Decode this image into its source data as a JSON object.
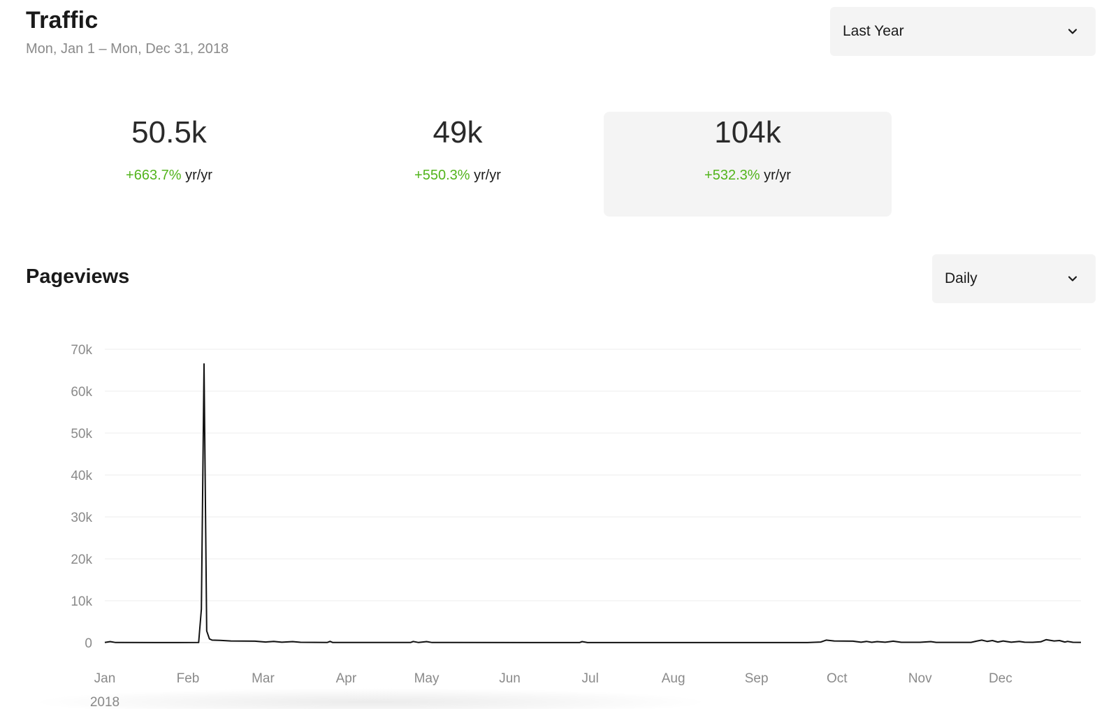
{
  "header": {
    "title": "Traffic",
    "date_range": "Mon, Jan 1 – Mon, Dec 31, 2018"
  },
  "range_select": {
    "value": "Last Year",
    "icon": "chevron-down-icon"
  },
  "stats": [
    {
      "value": "50.5k",
      "change": "+663.7%",
      "period": "yr/yr",
      "active": false
    },
    {
      "value": "49k",
      "change": "+550.3%",
      "period": "yr/yr",
      "active": false
    },
    {
      "value": "104k",
      "change": "+532.3%",
      "period": "yr/yr",
      "active": true
    }
  ],
  "section": {
    "title": "Pageviews"
  },
  "interval_select": {
    "value": "Daily",
    "icon": "chevron-down-icon"
  },
  "colors": {
    "positive": "#52b41c",
    "line": "#111111",
    "grid": "#ececec",
    "panel": "#f4f4f4"
  },
  "chart_data": {
    "type": "line",
    "title": "",
    "xlabel": "",
    "ylabel": "",
    "year_label": "2018",
    "ylim": [
      0,
      70000
    ],
    "y_ticks": [
      0,
      10000,
      20000,
      30000,
      40000,
      50000,
      60000,
      70000
    ],
    "y_tick_labels": [
      "0",
      "10k",
      "20k",
      "30k",
      "40k",
      "50k",
      "60k",
      "70k"
    ],
    "x_tick_labels": [
      "Jan",
      "Feb",
      "Mar",
      "Apr",
      "May",
      "Jun",
      "Jul",
      "Aug",
      "Sep",
      "Oct",
      "Nov",
      "Dec"
    ],
    "x_tick_dates": [
      "2018-01-01",
      "2018-02-01",
      "2018-03-01",
      "2018-04-01",
      "2018-05-01",
      "2018-06-01",
      "2018-07-01",
      "2018-08-01",
      "2018-09-01",
      "2018-10-01",
      "2018-11-01",
      "2018-12-01"
    ],
    "grid": true,
    "series": [
      {
        "points": [
          [
            "2018-01-01",
            50
          ],
          [
            "2018-01-03",
            250
          ],
          [
            "2018-01-05",
            30
          ],
          [
            "2018-01-20",
            20
          ],
          [
            "2018-02-05",
            30
          ],
          [
            "2018-02-06",
            8000
          ],
          [
            "2018-02-07",
            66500
          ],
          [
            "2018-02-08",
            2800
          ],
          [
            "2018-02-09",
            900
          ],
          [
            "2018-02-10",
            600
          ],
          [
            "2018-02-13",
            550
          ],
          [
            "2018-02-17",
            400
          ],
          [
            "2018-02-26",
            350
          ],
          [
            "2018-03-02",
            150
          ],
          [
            "2018-03-05",
            300
          ],
          [
            "2018-03-08",
            100
          ],
          [
            "2018-03-12",
            250
          ],
          [
            "2018-03-15",
            80
          ],
          [
            "2018-03-25",
            50
          ],
          [
            "2018-03-26",
            300
          ],
          [
            "2018-03-27",
            40
          ],
          [
            "2018-04-25",
            30
          ],
          [
            "2018-04-26",
            280
          ],
          [
            "2018-04-28",
            30
          ],
          [
            "2018-05-01",
            250
          ],
          [
            "2018-05-03",
            30
          ],
          [
            "2018-06-15",
            20
          ],
          [
            "2018-06-27",
            20
          ],
          [
            "2018-06-28",
            250
          ],
          [
            "2018-06-30",
            20
          ],
          [
            "2018-08-15",
            20
          ],
          [
            "2018-09-20",
            20
          ],
          [
            "2018-09-25",
            150
          ],
          [
            "2018-09-27",
            600
          ],
          [
            "2018-09-30",
            400
          ],
          [
            "2018-10-07",
            350
          ],
          [
            "2018-10-10",
            100
          ],
          [
            "2018-10-12",
            300
          ],
          [
            "2018-10-14",
            80
          ],
          [
            "2018-10-16",
            250
          ],
          [
            "2018-10-19",
            100
          ],
          [
            "2018-10-22",
            350
          ],
          [
            "2018-10-25",
            80
          ],
          [
            "2018-11-01",
            80
          ],
          [
            "2018-11-05",
            250
          ],
          [
            "2018-11-07",
            60
          ],
          [
            "2018-11-20",
            60
          ],
          [
            "2018-11-22",
            350
          ],
          [
            "2018-11-24",
            600
          ],
          [
            "2018-11-26",
            300
          ],
          [
            "2018-11-28",
            500
          ],
          [
            "2018-11-30",
            150
          ],
          [
            "2018-12-02",
            400
          ],
          [
            "2018-12-05",
            100
          ],
          [
            "2018-12-08",
            300
          ],
          [
            "2018-12-10",
            100
          ],
          [
            "2018-12-13",
            80
          ],
          [
            "2018-12-16",
            200
          ],
          [
            "2018-12-18",
            700
          ],
          [
            "2018-12-21",
            400
          ],
          [
            "2018-12-23",
            500
          ],
          [
            "2018-12-25",
            150
          ],
          [
            "2018-12-26",
            300
          ],
          [
            "2018-12-28",
            80
          ],
          [
            "2018-12-31",
            60
          ]
        ]
      }
    ]
  }
}
